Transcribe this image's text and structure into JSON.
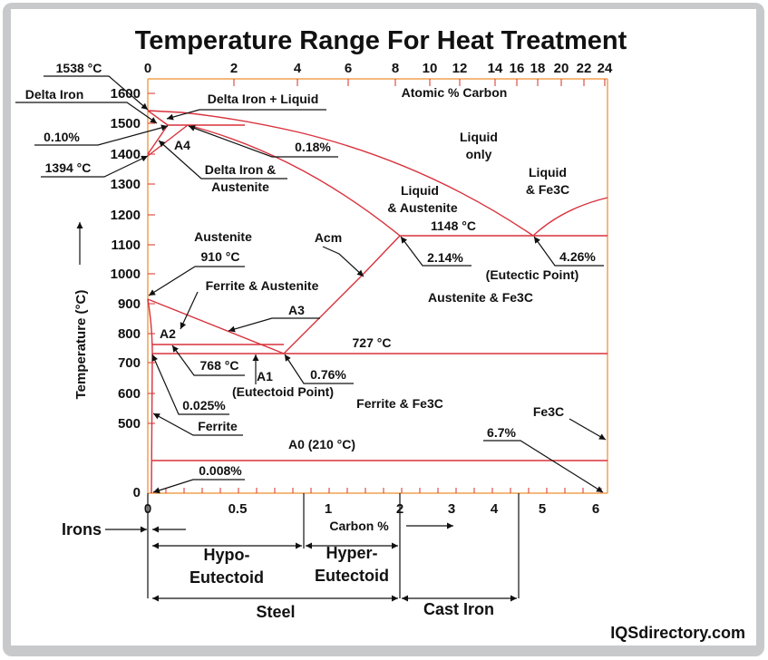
{
  "title": "Temperature Range For Heat Treatment",
  "colors": {
    "phase_lines": "#d8323c",
    "axes": "#f0a050",
    "frame": "#c8c9cb"
  },
  "axes": {
    "y_label": "Temperature (°C)",
    "y_ticks": [
      "1600",
      "1500",
      "1400",
      "1300",
      "1200",
      "1100",
      "1000",
      "900",
      "800",
      "700",
      "600",
      "500",
      "0"
    ],
    "top_label": "Atomic % Carbon",
    "top_ticks": [
      "0",
      "2",
      "4",
      "6",
      "8",
      "10",
      "12",
      "14",
      "16",
      "18",
      "20",
      "22",
      "24"
    ],
    "bottom_label": "Carbon %",
    "bottom_ticks": [
      "0",
      "0.5",
      "1",
      "2",
      "3",
      "4",
      "5",
      "6"
    ]
  },
  "annotations": {
    "t1538": "1538 °C",
    "delta_iron": "Delta Iron",
    "p010": "0.10%",
    "t1394": "1394 °C",
    "delta_liquid": "Delta Iron + Liquid",
    "a4": "A4",
    "p018": "0.18%",
    "delta_aus_1": "Delta Iron &",
    "delta_aus_2": "Austenite",
    "liquid_only_1": "Liquid",
    "liquid_only_2": "only",
    "liquid_fe3c_1": "Liquid",
    "liquid_fe3c_2": "& Fe3C",
    "liquid_aus_1": "Liquid",
    "liquid_aus_2": "& Austenite",
    "t1148": "1148 °C",
    "p214": "2.14%",
    "p426": "4.26%",
    "eutectic": "(Eutectic Point)",
    "austenite": "Austenite",
    "t910": "910 °C",
    "acm": "Acm",
    "ferrite_aus": "Ferrite & Austenite",
    "aus_fe3c": "Austenite & Fe3C",
    "a3": "A3",
    "a2": "A2",
    "t727": "727 °C",
    "t768": "768 °C",
    "a1": "A1",
    "eutectoid": "(Eutectoid Point)",
    "p076": "0.76%",
    "p0025": "0.025%",
    "ferrite_fe3c": "Ferrite & Fe3C",
    "ferrite": "Ferrite",
    "fe3c": "Fe3C",
    "p67": "6.7%",
    "a0": "A0 (210 °C)",
    "p0008": "0.008%"
  },
  "classification": {
    "irons": "Irons",
    "hypo_1": "Hypo-",
    "hypo_2": "Eutectoid",
    "hyper_1": "Hyper-",
    "hyper_2": "Eutectoid",
    "steel": "Steel",
    "cast_iron": "Cast Iron"
  },
  "watermark": "IQSdirectory.com"
}
